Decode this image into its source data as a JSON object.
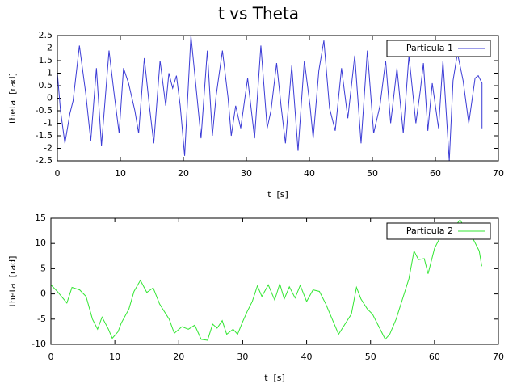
{
  "title": "t vs Theta",
  "chart_data": [
    {
      "type": "line",
      "xlabel": "t  [s]",
      "ylabel": "theta  [rad]",
      "xlim": [
        0,
        70
      ],
      "xticks": [
        0,
        10,
        20,
        30,
        40,
        50,
        60,
        70
      ],
      "ylim": [
        -2.5,
        2.5
      ],
      "yticks": [
        -2.5,
        -2,
        -1.5,
        -1,
        -0.5,
        0,
        0.5,
        1,
        1.5,
        2,
        2.5
      ],
      "legend": "upper right",
      "grid": false,
      "series": [
        {
          "name": "Particula 1",
          "color": "#3b3bd6",
          "x": [
            0,
            0.5,
            1.2,
            2,
            2.5,
            3.5,
            4.5,
            5.3,
            6.2,
            7,
            8.2,
            9,
            9.8,
            10.5,
            11.3,
            12.3,
            12.9,
            13.8,
            14.6,
            15.3,
            16.3,
            17.2,
            17.7,
            18.3,
            18.9,
            19.5,
            20.2,
            21.2,
            22.3,
            22.8,
            23.8,
            24.6,
            25.2,
            26.2,
            27.1,
            27.6,
            28.3,
            29.1,
            30.2,
            31.3,
            32.3,
            33.3,
            33.9,
            34.8,
            35.5,
            36.2,
            37.2,
            38.2,
            39.2,
            40.1,
            40.6,
            41.5,
            42.3,
            43.2,
            44.1,
            45.1,
            46.1,
            47.2,
            48.2,
            49.2,
            50.2,
            51.2,
            52.1,
            52.9,
            53.9,
            54.9,
            55.8,
            56.9,
            57.6,
            58.1,
            58.8,
            59.5,
            60.5,
            61.2,
            62.2,
            62.8,
            63.5,
            64.4,
            65.3,
            66.3,
            66.8,
            67.4,
            67.4
          ],
          "values": [
            1.0,
            -0.5,
            -1.8,
            -0.6,
            -0.1,
            2.1,
            0.2,
            -1.7,
            1.2,
            -1.9,
            1.9,
            0.2,
            -1.4,
            1.2,
            0.6,
            -0.5,
            -1.4,
            1.6,
            -0.3,
            -1.8,
            1.5,
            -0.3,
            1.0,
            0.4,
            0.9,
            -0.3,
            -2.3,
            2.5,
            -0.3,
            -1.6,
            1.9,
            -1.5,
            0.1,
            1.9,
            0.0,
            -1.5,
            -0.3,
            -1.2,
            0.8,
            -1.6,
            2.1,
            -1.2,
            -0.5,
            1.4,
            -0.3,
            -1.8,
            1.3,
            -2.1,
            1.5,
            -0.3,
            -1.6,
            1.1,
            2.3,
            -0.4,
            -1.3,
            1.2,
            -0.8,
            1.7,
            -1.8,
            1.9,
            -1.4,
            -0.3,
            1.5,
            -1.0,
            1.2,
            -1.4,
            1.7,
            -1.0,
            0.3,
            1.4,
            -1.3,
            0.6,
            -1.2,
            1.5,
            -2.5,
            0.7,
            1.8,
            0.7,
            -1.0,
            0.8,
            0.9,
            0.6,
            -1.2
          ]
        }
      ]
    },
    {
      "type": "line",
      "xlabel": "t  [s]",
      "ylabel": "theta  [rad]",
      "xlim": [
        0,
        70
      ],
      "xticks": [
        0,
        10,
        20,
        30,
        40,
        50,
        60,
        70
      ],
      "ylim": [
        -10,
        15
      ],
      "yticks": [
        -10,
        -5,
        0,
        5,
        10,
        15
      ],
      "legend": "upper right",
      "grid": false,
      "series": [
        {
          "name": "Particula 2",
          "color": "#33e633",
          "x": [
            0,
            1,
            2.5,
            3.3,
            4.5,
            5.5,
            6.5,
            7.3,
            8,
            9,
            9.6,
            10.5,
            11,
            12.2,
            13,
            14,
            15,
            16,
            17,
            18.5,
            19.3,
            20.5,
            21.5,
            22.5,
            23.5,
            24.5,
            25.3,
            26,
            26.8,
            27.5,
            28.5,
            29.2,
            30,
            30.7,
            31.5,
            32.3,
            33,
            34,
            35,
            35.8,
            36.5,
            37.3,
            38.2,
            39,
            40,
            41,
            42,
            43,
            44,
            45,
            46,
            47,
            47.8,
            48.5,
            49.5,
            50.3,
            51.5,
            52.3,
            53,
            54,
            55,
            56,
            56.8,
            57.5,
            58.4,
            59,
            60,
            60.8,
            61.5,
            62.3,
            63,
            64,
            65,
            66,
            67,
            67.4
          ],
          "values": [
            1.8,
            0.5,
            -1.8,
            1.3,
            0.8,
            -0.5,
            -5,
            -7,
            -4.6,
            -7,
            -8.8,
            -7.5,
            -5.8,
            -3,
            0.5,
            2.7,
            0.3,
            1.2,
            -2,
            -5,
            -7.8,
            -6.5,
            -7,
            -6.2,
            -9,
            -9.2,
            -6,
            -6.8,
            -5.3,
            -8,
            -7,
            -8,
            -5.5,
            -3.5,
            -1.5,
            1.6,
            -0.5,
            1.8,
            -1.2,
            2,
            -1,
            1.4,
            -0.8,
            1.7,
            -1.5,
            0.8,
            0.5,
            -2,
            -5,
            -8,
            -6,
            -4,
            1.3,
            -1,
            -3,
            -4,
            -7,
            -9,
            -8,
            -5,
            -1,
            3,
            8.5,
            6.8,
            7,
            4,
            9,
            11,
            13.5,
            12.5,
            13,
            14.7,
            12.5,
            11,
            8.5,
            5.5
          ]
        }
      ]
    }
  ]
}
